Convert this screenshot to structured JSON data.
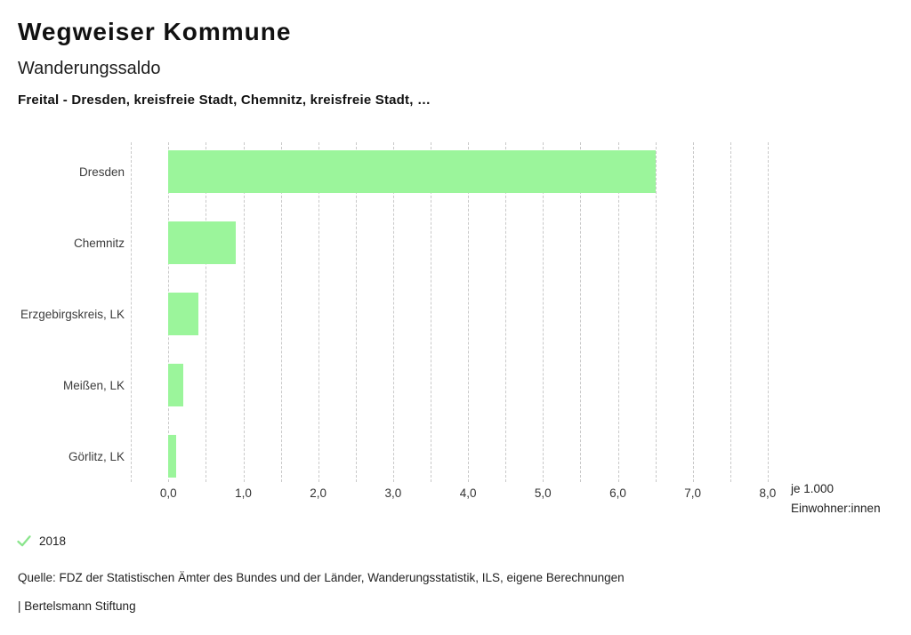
{
  "header": {
    "title": "Wegweiser Kommune",
    "subtitle": "Wanderungssaldo",
    "selection": "Freital - Dresden, kreisfreie Stadt, Chemnitz, kreisfreie Stadt, …"
  },
  "chart_data": {
    "type": "bar",
    "orientation": "horizontal",
    "title": "Wanderungssaldo",
    "categories": [
      "Dresden",
      "Chemnitz",
      "Erzgebirgskreis, LK",
      "Meißen, LK",
      "Görlitz, LK"
    ],
    "series": [
      {
        "name": "2018",
        "values": [
          6.5,
          0.9,
          0.4,
          0.2,
          0.1
        ]
      }
    ],
    "xlabel": "je 1.000 Einwohner:innen",
    "xlim": [
      -0.5,
      8.0
    ],
    "x_ticks": {
      "values": [
        0,
        1,
        2,
        3,
        4,
        5,
        6,
        7,
        8
      ],
      "labels": [
        "0,0",
        "1,0",
        "2,0",
        "3,0",
        "4,0",
        "5,0",
        "6,0",
        "7,0",
        "8,0"
      ]
    },
    "minor_grid_step": 0.5,
    "grid": "vertical-dashed",
    "bar_color": "#9BF59B",
    "legend_position": "bottom-left"
  },
  "axis_unit": {
    "line1": "je 1.000",
    "line2": "Einwohner:innen"
  },
  "legend": {
    "year": "2018",
    "check_icon": "check-mark",
    "check_color": "#8BE58D"
  },
  "footer": {
    "source": "Quelle: FDZ der Statistischen Ämter des Bundes und der Länder, Wanderungsstatistik, ILS, eigene Berechnungen",
    "branding": "| Bertelsmann Stiftung"
  }
}
